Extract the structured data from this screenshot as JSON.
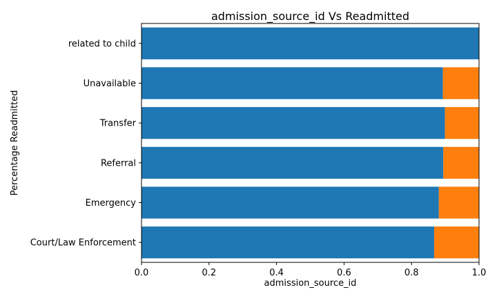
{
  "chart_data": {
    "type": "bar",
    "orientation": "horizontal",
    "stacked": true,
    "title": "admission_source_id Vs Readmitted",
    "xlabel": "admission_source_id",
    "ylabel": "Percentage Readmitted",
    "xlim": [
      0.0,
      1.0
    ],
    "xticks": [
      "0.0",
      "0.2",
      "0.4",
      "0.6",
      "0.8",
      "1.0"
    ],
    "categories": [
      "Court/Law Enforcement",
      "Emergency",
      "Referral",
      "Transfer",
      "Unavailable",
      "related to child"
    ],
    "series": [
      {
        "color": "#1f77b4",
        "values": [
          0.867,
          0.881,
          0.894,
          0.899,
          0.893,
          1.0
        ]
      },
      {
        "color": "#ff7f0e",
        "values": [
          0.133,
          0.119,
          0.106,
          0.101,
          0.107,
          0.0
        ]
      }
    ],
    "grid": false,
    "legend": "none"
  }
}
